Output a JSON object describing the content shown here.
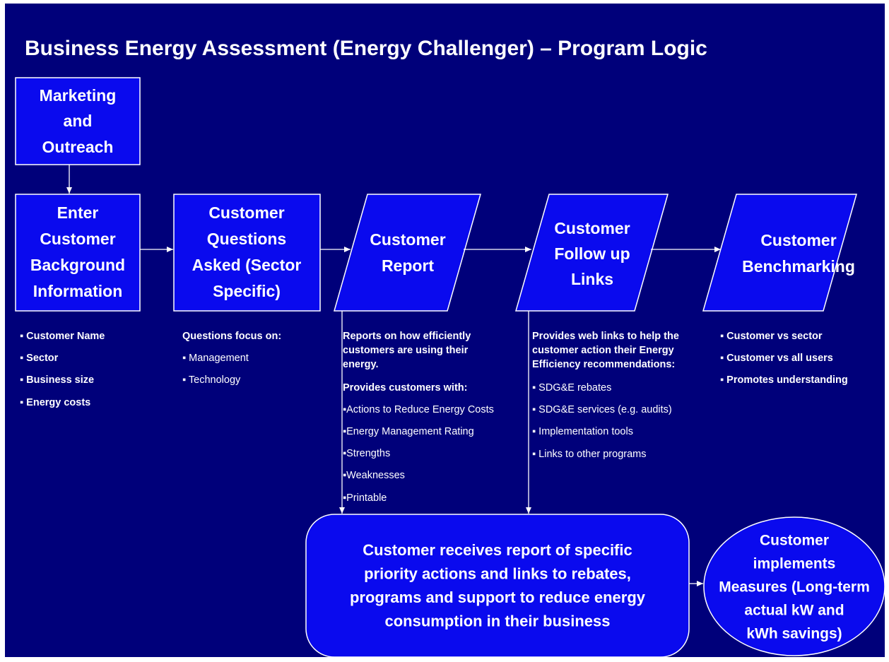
{
  "title": "Business Energy Assessment (Energy Challenger) – Program Logic",
  "nodes": [
    {
      "lines": [
        "Marketing",
        "and",
        "Outreach"
      ]
    },
    {
      "lines": [
        "Enter",
        "Customer",
        "Background",
        "Information"
      ]
    },
    {
      "lines": [
        "Customer",
        "Questions",
        "Asked (Sector",
        "Specific)"
      ]
    },
    {
      "lines": [
        "Customer",
        "Report"
      ]
    },
    {
      "lines": [
        "Customer",
        "Follow up",
        "Links"
      ]
    },
    {
      "lines": [
        "Customer",
        "Benchmarking"
      ]
    }
  ],
  "details": [
    {
      "lines": [
        "▪ Customer Name",
        "▪ Sector",
        "▪ Business size",
        "▪ Energy costs"
      ]
    },
    {
      "lines": [
        "Questions focus on:",
        "▪ Management",
        "▪ Technology"
      ]
    },
    {
      "lines": [
        "Reports on how  efficiently",
        "customers are using their",
        "energy.",
        "Provides customers with:",
        "▪Actions to Reduce Energy Costs",
        "▪Energy Management Rating",
        "▪Strengths",
        "▪Weaknesses",
        "▪Printable"
      ]
    },
    {
      "lines": [
        "Provides web links to help the",
        "customer action their Energy",
        "Efficiency recommendations:",
        "▪ SDG&E rebates",
        "▪ SDG&E services (e.g. audits)",
        "▪ Implementation tools",
        "▪ Links to other programs"
      ]
    },
    {
      "lines": [
        "▪ Customer vs sector",
        "▪ Customer vs all users",
        "▪ Promotes understanding"
      ]
    }
  ],
  "outcome": {
    "lines": [
      "Customer receives report of specific",
      "priority actions and links to rebates,",
      "programs and support to reduce energy",
      "consumption in their business"
    ]
  },
  "result": {
    "lines": [
      "Customer",
      "implements",
      "Measures (Long-term",
      "actual kW and",
      "kWh savings)"
    ]
  }
}
